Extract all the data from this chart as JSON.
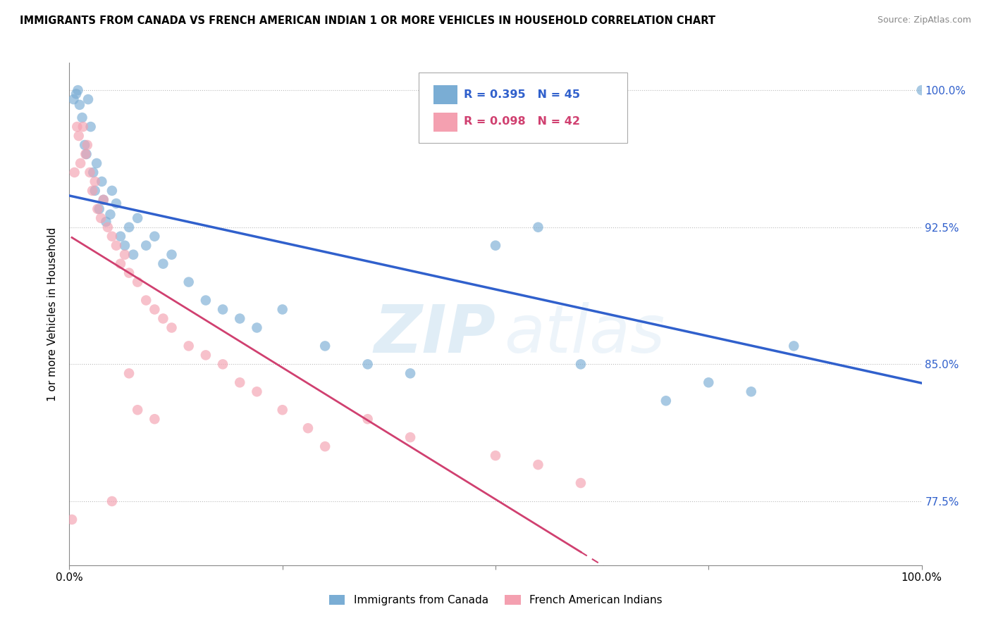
{
  "title": "IMMIGRANTS FROM CANADA VS FRENCH AMERICAN INDIAN 1 OR MORE VEHICLES IN HOUSEHOLD CORRELATION CHART",
  "source": "Source: ZipAtlas.com",
  "ylabel": "1 or more Vehicles in Household",
  "xlim": [
    0.0,
    100.0
  ],
  "ylim": [
    74.0,
    101.5
  ],
  "yticks": [
    77.5,
    85.0,
    92.5,
    100.0
  ],
  "xticks": [
    0.0,
    25.0,
    50.0,
    75.0,
    100.0
  ],
  "xtick_labels": [
    "0.0%",
    "",
    "",
    "",
    "100.0%"
  ],
  "ytick_labels": [
    "77.5%",
    "85.0%",
    "92.5%",
    "100.0%"
  ],
  "blue_R": 0.395,
  "blue_N": 45,
  "pink_R": 0.098,
  "pink_N": 42,
  "blue_color": "#7aadd4",
  "pink_color": "#f4a0b0",
  "blue_line_color": "#3060cc",
  "pink_line_color": "#d04070",
  "background_color": "#ffffff",
  "watermark_zip": "ZIP",
  "watermark_atlas": "atlas",
  "blue_points_x": [
    0.5,
    0.8,
    1.0,
    1.2,
    1.5,
    1.8,
    2.0,
    2.2,
    2.5,
    2.8,
    3.0,
    3.2,
    3.5,
    3.8,
    4.0,
    4.3,
    4.8,
    5.0,
    5.5,
    6.0,
    6.5,
    7.0,
    7.5,
    8.0,
    9.0,
    10.0,
    11.0,
    12.0,
    14.0,
    16.0,
    18.0,
    20.0,
    22.0,
    25.0,
    30.0,
    35.0,
    40.0,
    50.0,
    55.0,
    60.0,
    70.0,
    75.0,
    80.0,
    85.0,
    100.0
  ],
  "blue_points_y": [
    99.5,
    99.8,
    100.0,
    99.2,
    98.5,
    97.0,
    96.5,
    99.5,
    98.0,
    95.5,
    94.5,
    96.0,
    93.5,
    95.0,
    94.0,
    92.8,
    93.2,
    94.5,
    93.8,
    92.0,
    91.5,
    92.5,
    91.0,
    93.0,
    91.5,
    92.0,
    90.5,
    91.0,
    89.5,
    88.5,
    88.0,
    87.5,
    87.0,
    88.0,
    86.0,
    85.0,
    84.5,
    91.5,
    92.5,
    85.0,
    83.0,
    84.0,
    83.5,
    86.0,
    100.0
  ],
  "pink_points_x": [
    0.3,
    0.6,
    0.9,
    1.1,
    1.3,
    1.6,
    1.9,
    2.1,
    2.4,
    2.7,
    3.0,
    3.3,
    3.7,
    4.0,
    4.5,
    5.0,
    5.5,
    6.0,
    6.5,
    7.0,
    8.0,
    9.0,
    10.0,
    11.0,
    12.0,
    14.0,
    16.0,
    18.0,
    20.0,
    22.0,
    25.0,
    28.0,
    30.0,
    35.0,
    40.0,
    50.0,
    55.0,
    60.0,
    5.0,
    7.0,
    8.0,
    10.0
  ],
  "pink_points_y": [
    76.5,
    95.5,
    98.0,
    97.5,
    96.0,
    98.0,
    96.5,
    97.0,
    95.5,
    94.5,
    95.0,
    93.5,
    93.0,
    94.0,
    92.5,
    92.0,
    91.5,
    90.5,
    91.0,
    90.0,
    89.5,
    88.5,
    88.0,
    87.5,
    87.0,
    86.0,
    85.5,
    85.0,
    84.0,
    83.5,
    82.5,
    81.5,
    80.5,
    82.0,
    81.0,
    80.0,
    79.5,
    78.5,
    77.5,
    84.5,
    82.5,
    82.0
  ]
}
